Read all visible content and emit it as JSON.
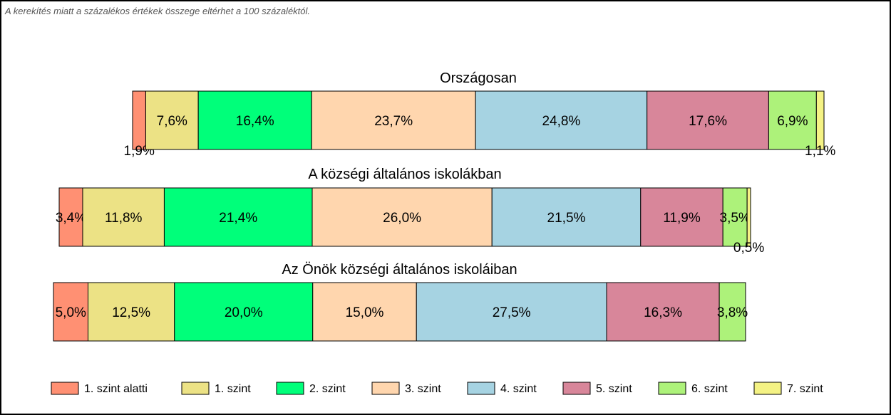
{
  "note": "A kerekítés miatt a  százalékos értékek összege eltérhet a 100 százaléktól.",
  "chart_data": {
    "type": "bar",
    "orientation": "horizontal-stacked-100",
    "levels": [
      "1. szint alatti",
      "1. szint",
      "2. szint",
      "3. szint",
      "4. szint",
      "5. szint",
      "6. szint",
      "7. szint"
    ],
    "colors": [
      "#FF9073",
      "#ECE285",
      "#00FF7A",
      "#FFD6AE",
      "#A6D3E2",
      "#D8869A",
      "#ADF27A",
      "#F4F284"
    ],
    "bars": [
      {
        "title": "Országosan",
        "values": [
          1.9,
          7.6,
          16.4,
          23.7,
          24.8,
          17.6,
          6.9,
          1.1
        ],
        "labels": [
          "1,9%",
          "7,6%",
          "16,4%",
          "23,7%",
          "24,8%",
          "17,6%",
          "6,9%",
          "1,1%"
        ]
      },
      {
        "title": "A községi általános iskolákban",
        "values": [
          3.4,
          11.8,
          21.4,
          26.0,
          21.5,
          11.9,
          3.5,
          0.5
        ],
        "labels": [
          "3,4%",
          "11,8%",
          "21,4%",
          "26,0%",
          "21,5%",
          "11,9%",
          "3,5%",
          "0,5%"
        ]
      },
      {
        "title": "Az Önök községi általános iskoláiban",
        "values": [
          5.0,
          12.5,
          20.0,
          15.0,
          27.5,
          16.3,
          3.8
        ],
        "labels": [
          "5,0%",
          "12,5%",
          "20,0%",
          "15,0%",
          "27,5%",
          "16,3%",
          "3,8%"
        ]
      }
    ],
    "legend_position": "bottom"
  }
}
